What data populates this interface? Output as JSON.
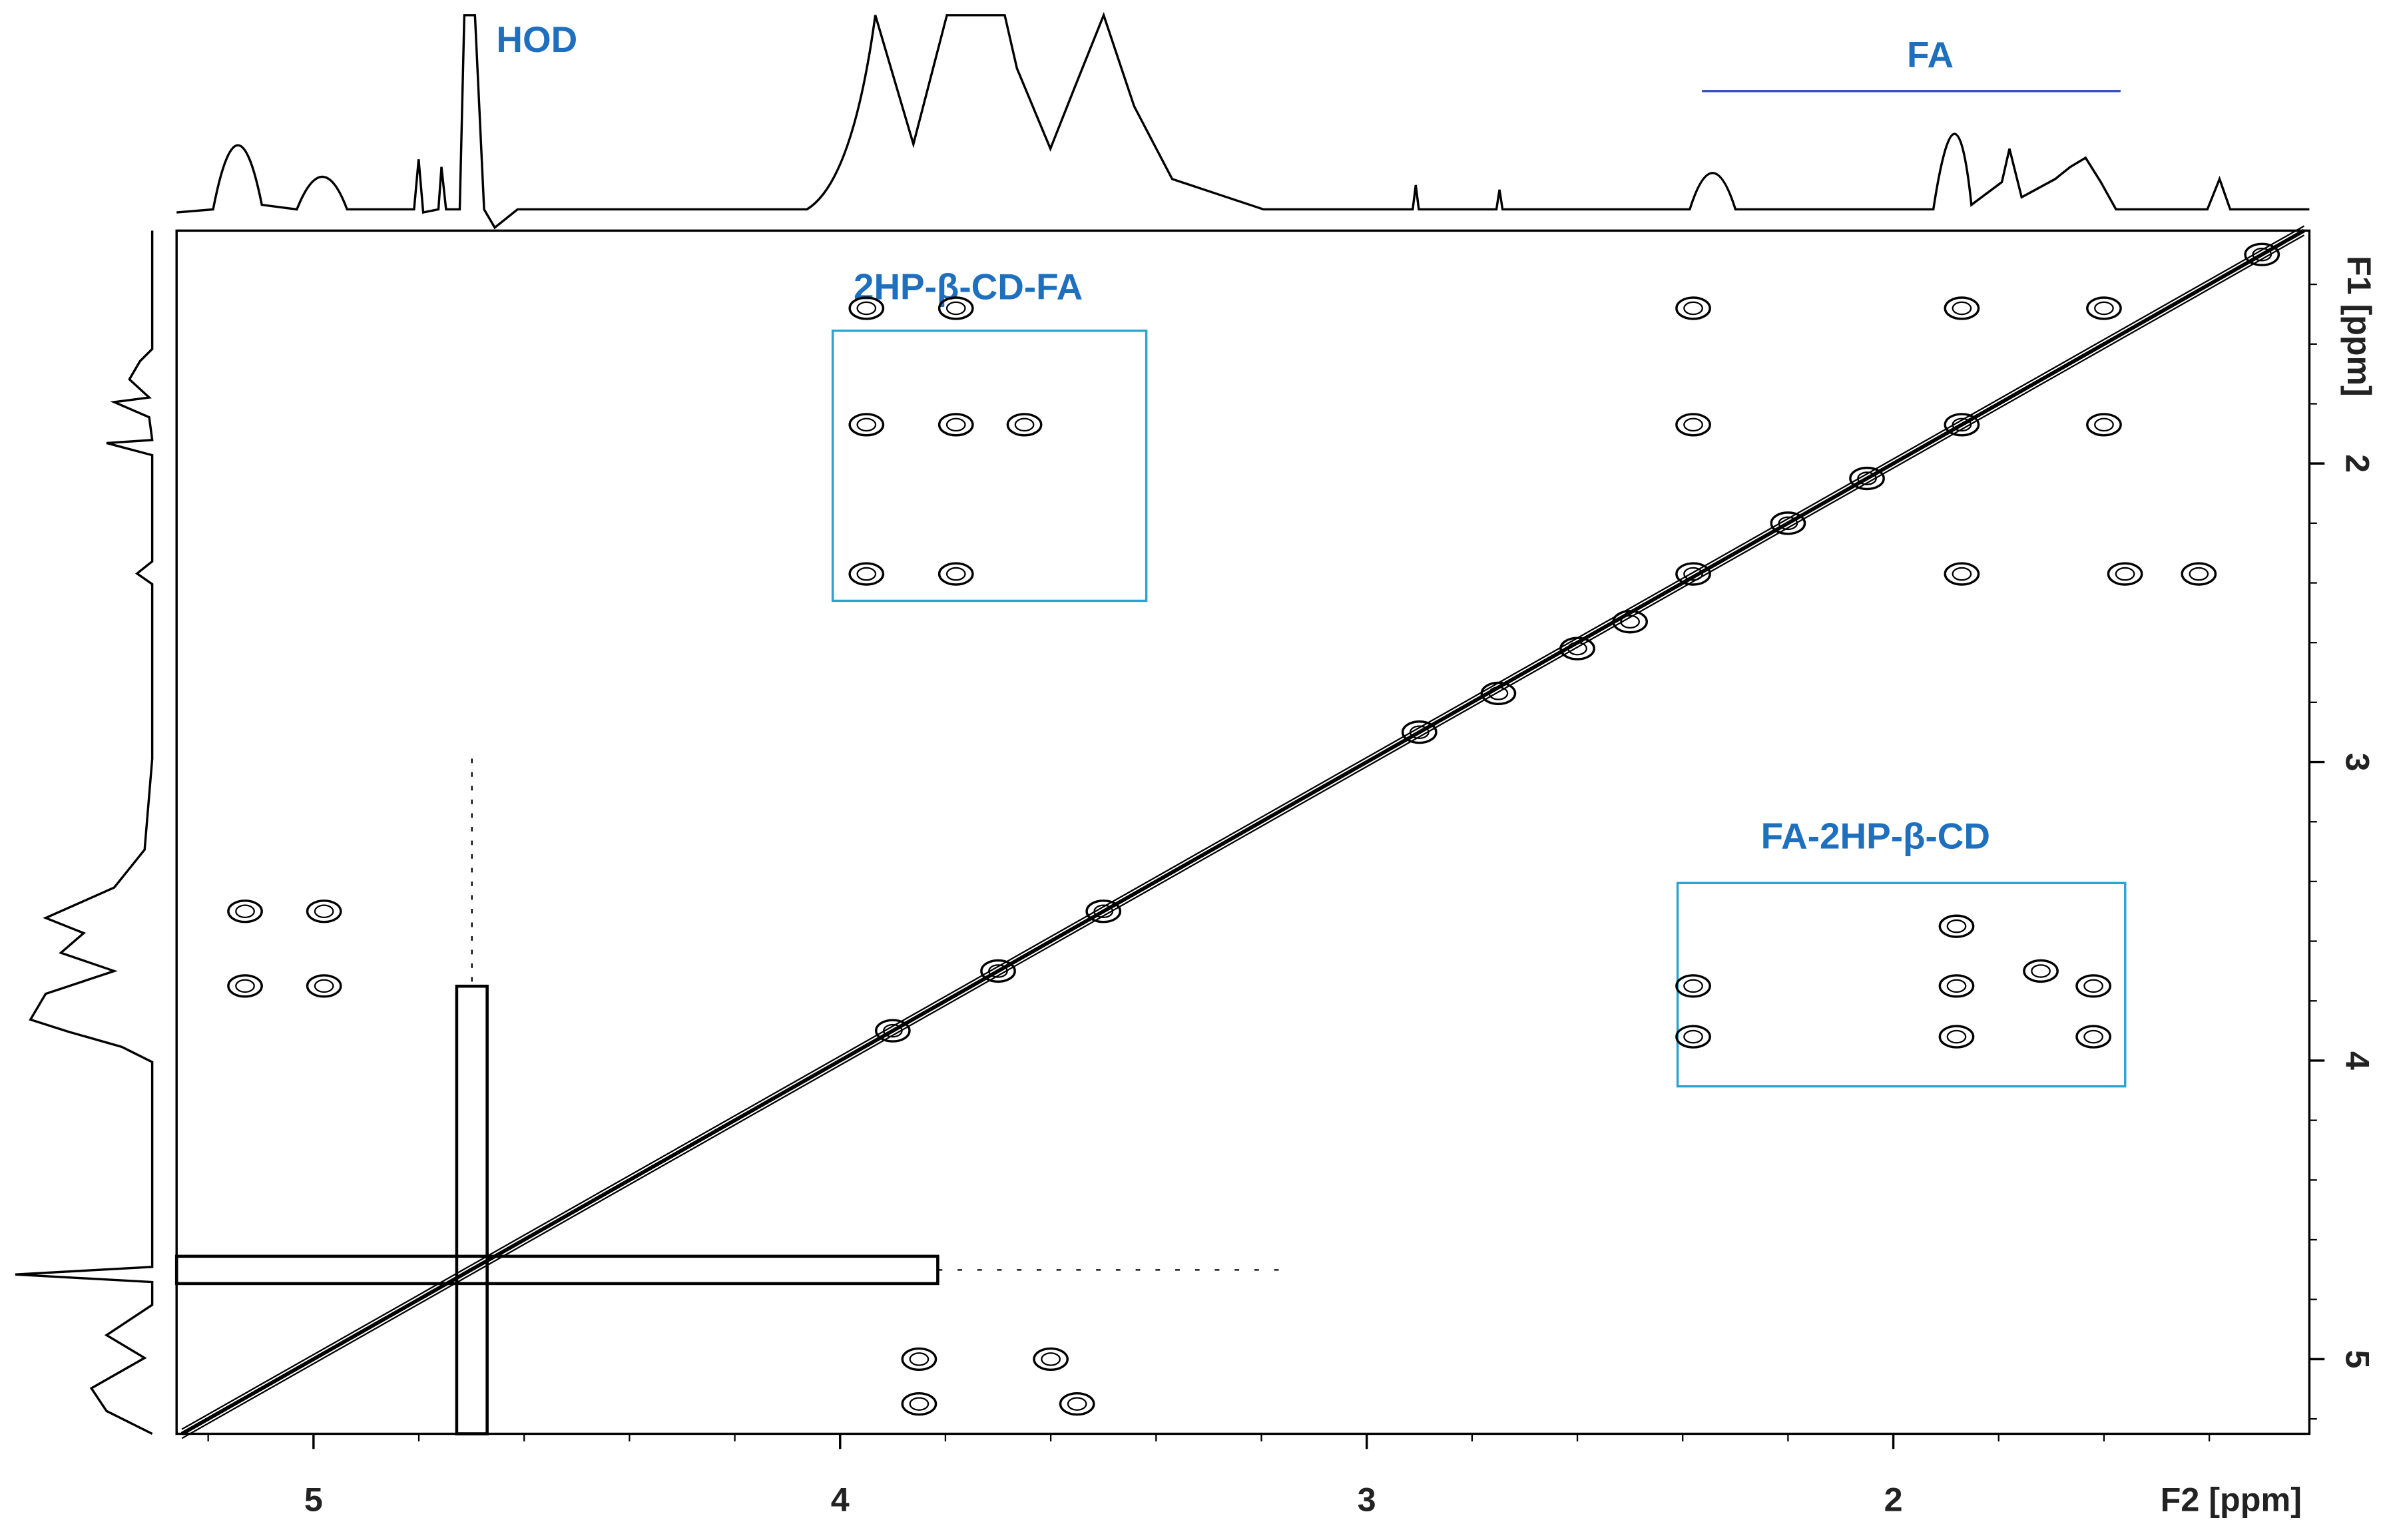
{
  "chart_data": {
    "type": "contour",
    "x_label": "F2 [ppm]",
    "y_label": "F1 [ppm]",
    "xlim": [
      5.26,
      1.21
    ],
    "ylim": [
      1.22,
      5.25
    ],
    "xticks": [
      5,
      4,
      3,
      2
    ],
    "yticks": [
      2,
      3,
      4,
      5
    ],
    "xticks_minor": [
      5.2,
      4.8,
      4.6,
      4.4,
      4.2,
      3.8,
      3.6,
      3.4,
      3.2,
      2.8,
      2.6,
      2.4,
      2.2,
      1.8,
      1.6,
      1.4
    ],
    "yticks_minor": [
      1.4,
      1.6,
      1.8,
      2.2,
      2.4,
      2.6,
      2.8,
      3.2,
      3.4,
      3.6,
      3.8,
      4.2,
      4.4,
      4.6,
      4.8,
      5.2
    ],
    "color": "#000000",
    "peaks": {
      "x": [
        2.38,
        2.38,
        2.38,
        1.87,
        1.87,
        1.6,
        1.6,
        1.87,
        1.56,
        1.42,
        2.9,
        2.75,
        2.6,
        2.5,
        2.2,
        2.05,
        1.3,
        3.95,
        3.78,
        3.95,
        3.78,
        3.65,
        3.95,
        3.78,
        5.13,
        5.13,
        4.98,
        4.98,
        3.85,
        3.6,
        3.85,
        3.55,
        2.38,
        2.38,
        1.88,
        1.88,
        1.88,
        1.62,
        1.72,
        1.62,
        3.5,
        3.9,
        3.7
      ],
      "y": [
        1.48,
        1.87,
        2.37,
        1.48,
        1.87,
        1.48,
        1.87,
        2.37,
        2.37,
        2.37,
        2.9,
        2.77,
        2.62,
        2.53,
        2.2,
        2.05,
        1.3,
        1.48,
        1.48,
        1.87,
        1.87,
        1.87,
        2.37,
        2.37,
        3.5,
        3.75,
        3.5,
        3.75,
        5.0,
        5.0,
        5.15,
        5.15,
        3.75,
        3.92,
        3.55,
        3.75,
        3.92,
        3.75,
        3.7,
        3.92,
        3.5,
        3.9,
        3.7
      ]
    },
    "annotations": {
      "hod": "HOD",
      "fa": "FA",
      "box_top": "2HP-β-CD-FA",
      "box_bottom": "FA-2HP-β-CD"
    }
  }
}
